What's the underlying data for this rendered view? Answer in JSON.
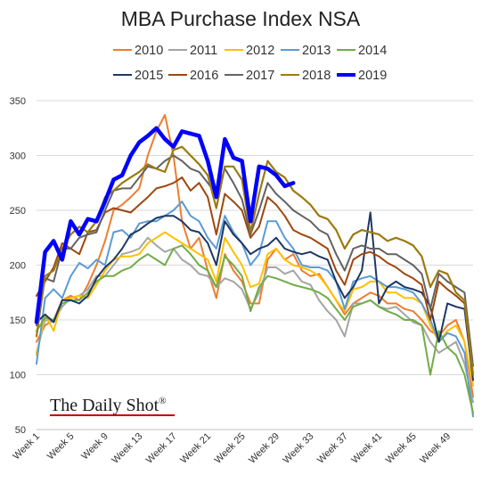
{
  "chart_data": {
    "type": "line",
    "title": "MBA Purchase Index NSA",
    "xlabel": "",
    "ylabel": "",
    "ylim": [
      50,
      350
    ],
    "yticks": [
      50,
      100,
      150,
      200,
      250,
      300,
      350
    ],
    "xlim": [
      1,
      52
    ],
    "xticks": [
      {
        "x": 1,
        "label": "Week 1"
      },
      {
        "x": 5,
        "label": "Week 5"
      },
      {
        "x": 9,
        "label": "Week 9"
      },
      {
        "x": 13,
        "label": "Week 13"
      },
      {
        "x": 17,
        "label": "Week 17"
      },
      {
        "x": 21,
        "label": "Week 21"
      },
      {
        "x": 25,
        "label": "Week 25"
      },
      {
        "x": 29,
        "label": "Week 29"
      },
      {
        "x": 33,
        "label": "Week 33"
      },
      {
        "x": 37,
        "label": "Week 37"
      },
      {
        "x": 41,
        "label": "Week 41"
      },
      {
        "x": 45,
        "label": "Week 45"
      },
      {
        "x": 49,
        "label": "Week 49"
      }
    ],
    "grid": true,
    "legend_position": "top",
    "series": [
      {
        "name": "2010",
        "color": "#ed7d31",
        "width": 2,
        "values": [
          130,
          145,
          150,
          168,
          172,
          168,
          182,
          200,
          222,
          250,
          255,
          262,
          270,
          300,
          322,
          337,
          300,
          240,
          215,
          225,
          195,
          170,
          210,
          195,
          185,
          165,
          165,
          205,
          215,
          205,
          210,
          195,
          190,
          192,
          180,
          168,
          155,
          165,
          170,
          175,
          172,
          165,
          165,
          160,
          158,
          150,
          140,
          135,
          145,
          150,
          130,
          80
        ]
      },
      {
        "name": "2011",
        "color": "#a5a5a5",
        "width": 2,
        "values": [
          120,
          150,
          148,
          162,
          170,
          172,
          178,
          190,
          190,
          200,
          210,
          212,
          215,
          225,
          218,
          212,
          215,
          205,
          200,
          192,
          190,
          180,
          188,
          185,
          178,
          160,
          175,
          198,
          198,
          192,
          195,
          185,
          182,
          168,
          158,
          150,
          135,
          165,
          165,
          168,
          162,
          160,
          162,
          155,
          148,
          145,
          130,
          120,
          125,
          130,
          110,
          75
        ]
      },
      {
        "name": "2012",
        "color": "#ffc000",
        "width": 2,
        "values": [
          118,
          155,
          140,
          168,
          170,
          172,
          170,
          182,
          195,
          205,
          208,
          208,
          210,
          220,
          225,
          230,
          225,
          220,
          215,
          210,
          205,
          185,
          225,
          212,
          200,
          180,
          183,
          210,
          215,
          205,
          200,
          198,
          195,
          190,
          180,
          168,
          158,
          178,
          180,
          185,
          185,
          175,
          175,
          170,
          170,
          165,
          145,
          130,
          140,
          145,
          130,
          90
        ]
      },
      {
        "name": "2013",
        "color": "#5b9bd5",
        "width": 2,
        "values": [
          110,
          170,
          178,
          170,
          190,
          202,
          197,
          205,
          200,
          230,
          232,
          225,
          238,
          240,
          240,
          245,
          250,
          258,
          245,
          240,
          225,
          215,
          245,
          230,
          220,
          200,
          210,
          240,
          240,
          225,
          215,
          200,
          198,
          198,
          195,
          185,
          160,
          185,
          188,
          190,
          185,
          180,
          180,
          178,
          175,
          165,
          150,
          130,
          138,
          135,
          120,
          62
        ]
      },
      {
        "name": "2014",
        "color": "#70ad47",
        "width": 2,
        "values": [
          140,
          152,
          150,
          165,
          168,
          168,
          175,
          185,
          190,
          190,
          195,
          198,
          205,
          210,
          205,
          200,
          215,
          218,
          210,
          200,
          195,
          180,
          208,
          200,
          190,
          158,
          180,
          190,
          188,
          185,
          182,
          180,
          178,
          175,
          170,
          160,
          150,
          162,
          165,
          168,
          162,
          158,
          155,
          150,
          150,
          145,
          100,
          140,
          125,
          118,
          100,
          65
        ]
      },
      {
        "name": "2015",
        "color": "#1f3864",
        "width": 2,
        "values": [
          148,
          155,
          148,
          168,
          168,
          165,
          172,
          188,
          198,
          205,
          215,
          228,
          232,
          238,
          243,
          245,
          245,
          240,
          232,
          230,
          220,
          200,
          240,
          228,
          220,
          210,
          215,
          218,
          225,
          215,
          212,
          210,
          212,
          208,
          205,
          185,
          170,
          180,
          195,
          248,
          165,
          180,
          185,
          180,
          178,
          175,
          162,
          130,
          165,
          162,
          160,
          95
        ]
      },
      {
        "name": "2016",
        "color": "#9e480e",
        "width": 2,
        "values": [
          172,
          185,
          198,
          220,
          215,
          210,
          230,
          232,
          248,
          252,
          250,
          248,
          255,
          262,
          270,
          272,
          275,
          280,
          268,
          275,
          262,
          228,
          265,
          258,
          250,
          225,
          235,
          262,
          255,
          245,
          232,
          228,
          225,
          220,
          215,
          195,
          182,
          205,
          210,
          212,
          208,
          202,
          198,
          192,
          188,
          182,
          150,
          185,
          178,
          172,
          165,
          100
        ]
      },
      {
        "name": "2017",
        "color": "#636363",
        "width": 2,
        "values": [
          145,
          188,
          185,
          215,
          215,
          225,
          228,
          230,
          250,
          268,
          270,
          270,
          280,
          290,
          288,
          295,
          300,
          295,
          288,
          285,
          275,
          265,
          288,
          275,
          260,
          228,
          250,
          275,
          265,
          258,
          250,
          245,
          240,
          232,
          228,
          210,
          195,
          215,
          218,
          215,
          215,
          210,
          210,
          205,
          200,
          192,
          160,
          192,
          185,
          180,
          175,
          108
        ]
      },
      {
        "name": "2018",
        "color": "#9c7a0f",
        "width": 2.2,
        "values": [
          135,
          190,
          195,
          215,
          228,
          235,
          230,
          240,
          262,
          268,
          275,
          280,
          285,
          292,
          288,
          285,
          305,
          308,
          300,
          292,
          282,
          252,
          290,
          290,
          278,
          230,
          265,
          295,
          285,
          280,
          268,
          262,
          255,
          245,
          242,
          232,
          215,
          228,
          232,
          230,
          228,
          222,
          225,
          222,
          218,
          208,
          180,
          195,
          192,
          175,
          168,
          100
        ]
      },
      {
        "name": "2019",
        "color": "#0000ff",
        "width": 4.5,
        "values": [
          148,
          212,
          222,
          205,
          240,
          228,
          242,
          240,
          258,
          278,
          282,
          300,
          312,
          318,
          325,
          315,
          308,
          322,
          320,
          318,
          295,
          262,
          315,
          298,
          295,
          240,
          290,
          288,
          282,
          272,
          275,
          null,
          null,
          null,
          null,
          null,
          null,
          null,
          null,
          null,
          null,
          null,
          null,
          null,
          null,
          null,
          null,
          null,
          null,
          null,
          null,
          null
        ]
      }
    ]
  },
  "brand": {
    "text": "The Daily Shot",
    "mark": "®"
  },
  "colors": {
    "gridline": "#d9d9d9",
    "axis": "#bfbfbf",
    "brand_underline": "#c00000"
  }
}
